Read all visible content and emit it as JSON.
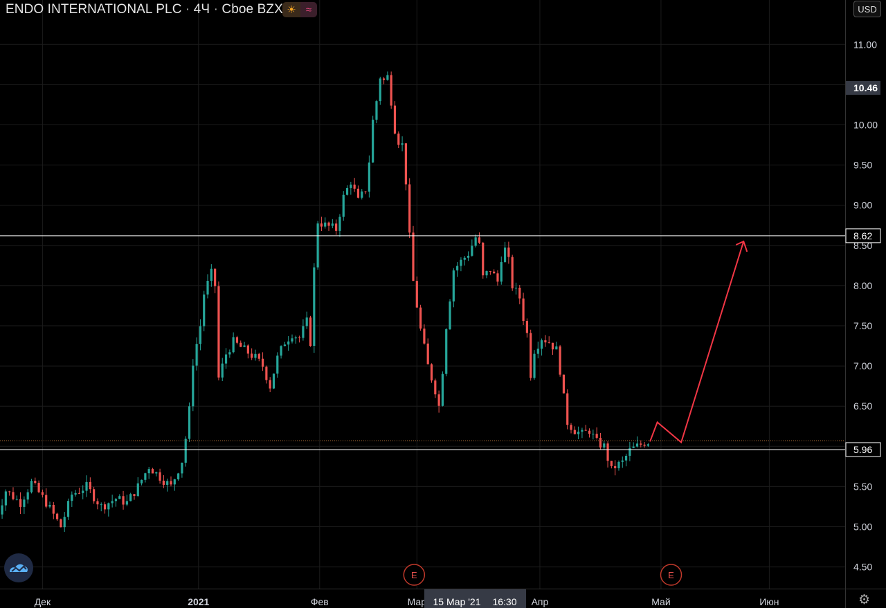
{
  "header": {
    "symbol": "ENDO INTERNATIONAL PLC",
    "interval": "4Ч",
    "exchange": "Cboe BZX",
    "separator": "·",
    "currency": "USD"
  },
  "icons": {
    "session": "sun-icon",
    "market": "wave-icon",
    "logo": "tradingview-logo-icon",
    "settings": "gear-icon"
  },
  "colors": {
    "up": "#26a69a",
    "down": "#ef5350",
    "line": "#ffffff",
    "projection": "#f23645",
    "grid": "#1c1c1c",
    "background": "#000000"
  },
  "crosshair_label": {
    "date": "15 Мар '21",
    "time": "16:30"
  },
  "earnings_marker": "E",
  "chart_data": {
    "type": "candlestick",
    "title": "",
    "ylim": [
      4.25,
      11.4
    ],
    "y_ticks": [
      4.5,
      5.0,
      5.5,
      6.0,
      6.5,
      7.0,
      7.5,
      8.0,
      8.5,
      9.0,
      9.5,
      10.0,
      10.5,
      11.0
    ],
    "x_tick_labels": [
      "Дек",
      "2021",
      "Фев",
      "Мар",
      "Апр",
      "Май",
      "Июн"
    ],
    "x_tick_positions": [
      -2,
      40.5,
      73.5,
      100,
      133.5,
      166.5,
      196
    ],
    "x_range": [
      -15,
      211
    ],
    "price_labels": [
      {
        "value": 10.46,
        "text": "10.46",
        "style": "highlight"
      },
      {
        "value": 8.62,
        "text": "8.62",
        "style": "box"
      },
      {
        "value": 5.96,
        "text": "5.96",
        "style": "box"
      }
    ],
    "horizontal_lines": [
      8.62,
      5.96
    ],
    "current_price_line": 6.07,
    "earnings_x": [
      100,
      170
    ],
    "projection_path": [
      [
        163.5,
        6.06
      ],
      [
        165.5,
        6.3
      ],
      [
        172,
        6.05
      ],
      [
        189,
        8.55
      ]
    ],
    "anchors": [
      [
        -15,
        5.05
      ],
      [
        -12,
        5.45
      ],
      [
        -8,
        5.3
      ],
      [
        -5,
        5.55
      ],
      [
        -1,
        5.3
      ],
      [
        3,
        5.0
      ],
      [
        6,
        5.4
      ],
      [
        10,
        5.5
      ],
      [
        14,
        5.25
      ],
      [
        18,
        5.35
      ],
      [
        21,
        5.3
      ],
      [
        24,
        5.5
      ],
      [
        27,
        5.75
      ],
      [
        30,
        5.62
      ],
      [
        33,
        5.5
      ],
      [
        36,
        5.82
      ],
      [
        37,
        6.1
      ],
      [
        38,
        6.45
      ],
      [
        39,
        7.05
      ],
      [
        41,
        7.5
      ],
      [
        42,
        7.9
      ],
      [
        44,
        8.15
      ],
      [
        45,
        8.0
      ],
      [
        46,
        6.85
      ],
      [
        48,
        7.15
      ],
      [
        50,
        7.3
      ],
      [
        53,
        7.2
      ],
      [
        56,
        7.1
      ],
      [
        58,
        7.0
      ],
      [
        60,
        6.75
      ],
      [
        62,
        7.1
      ],
      [
        64,
        7.3
      ],
      [
        66,
        7.4
      ],
      [
        68,
        7.35
      ],
      [
        70,
        7.55
      ],
      [
        71,
        7.3
      ],
      [
        72,
        8.2
      ],
      [
        73,
        8.8
      ],
      [
        75,
        8.75
      ],
      [
        78,
        8.7
      ],
      [
        80,
        9.1
      ],
      [
        82,
        9.3
      ],
      [
        84,
        9.05
      ],
      [
        86,
        9.2
      ],
      [
        87,
        9.55
      ],
      [
        88,
        10.05
      ],
      [
        89,
        10.3
      ],
      [
        90,
        10.6
      ],
      [
        91,
        10.55
      ],
      [
        92,
        10.6
      ],
      [
        93,
        10.3
      ],
      [
        94,
        9.95
      ],
      [
        95,
        9.8
      ],
      [
        96,
        9.75
      ],
      [
        97,
        9.3
      ],
      [
        98,
        8.6
      ],
      [
        99,
        8.05
      ],
      [
        101,
        7.45
      ],
      [
        103,
        7.0
      ],
      [
        105,
        6.7
      ],
      [
        106,
        6.5
      ],
      [
        107,
        6.95
      ],
      [
        108,
        7.5
      ],
      [
        110,
        8.2
      ],
      [
        112,
        8.3
      ],
      [
        114,
        8.4
      ],
      [
        116,
        8.6
      ],
      [
        117,
        8.5
      ],
      [
        118,
        8.1
      ],
      [
        120,
        8.2
      ],
      [
        122,
        8.05
      ],
      [
        123,
        8.35
      ],
      [
        124,
        8.45
      ],
      [
        125,
        8.3
      ],
      [
        126,
        8.0
      ],
      [
        128,
        7.85
      ],
      [
        129,
        7.6
      ],
      [
        130,
        7.4
      ],
      [
        131,
        6.9
      ],
      [
        132,
        7.2
      ],
      [
        134,
        7.35
      ],
      [
        136,
        7.3
      ],
      [
        138,
        7.2
      ],
      [
        139,
        6.95
      ],
      [
        140,
        6.6
      ],
      [
        141,
        6.3
      ],
      [
        143,
        6.2
      ],
      [
        145,
        6.15
      ],
      [
        147,
        6.2
      ],
      [
        149,
        6.05
      ],
      [
        151,
        6.0
      ],
      [
        152,
        5.85
      ],
      [
        153,
        5.7
      ],
      [
        154,
        5.75
      ],
      [
        156,
        5.8
      ],
      [
        158,
        5.95
      ],
      [
        160,
        6.0
      ],
      [
        162,
        6.05
      ],
      [
        163.5,
        6.06
      ]
    ]
  }
}
